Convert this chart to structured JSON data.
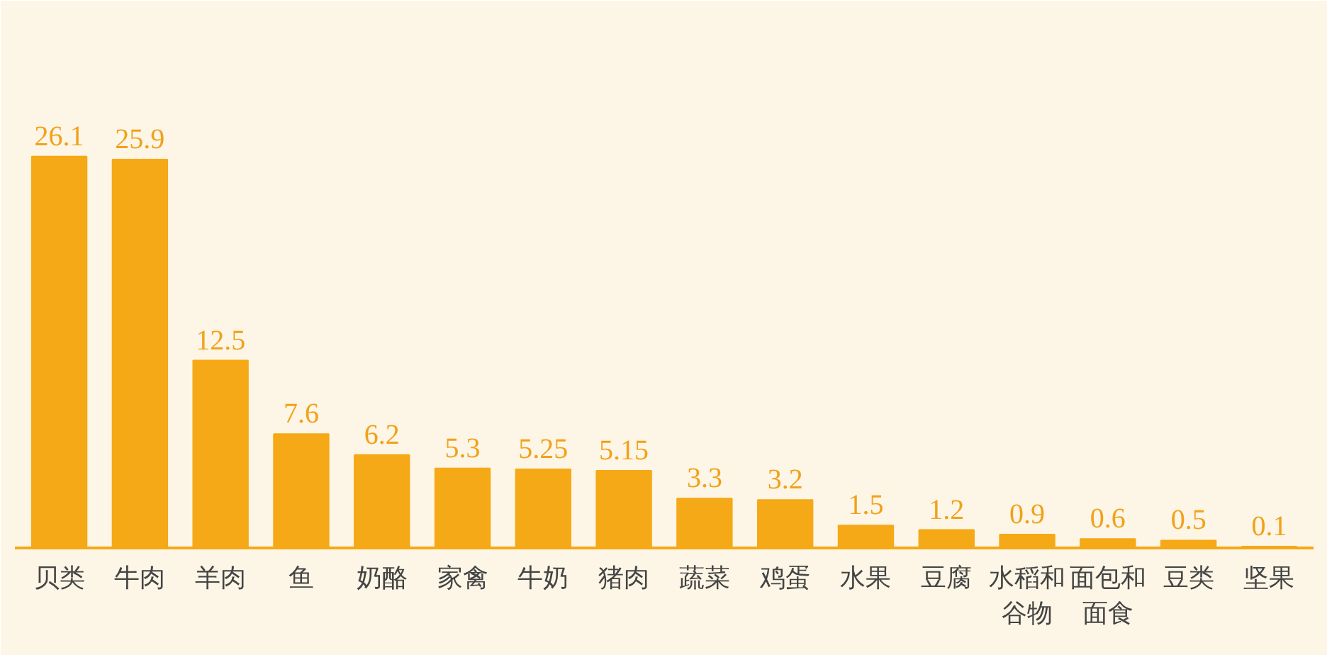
{
  "chart_data": {
    "type": "bar",
    "categories": [
      "贝类",
      "牛肉",
      "羊肉",
      "鱼",
      "奶酪",
      "家禽",
      "牛奶",
      "猪肉",
      "蔬菜",
      "鸡蛋",
      "水果",
      "豆腐",
      "水稻和谷物",
      "面包和面食",
      "豆类",
      "坚果"
    ],
    "values": [
      26.1,
      25.9,
      12.5,
      7.6,
      6.2,
      5.3,
      5.25,
      5.15,
      3.3,
      3.2,
      1.5,
      1.2,
      0.9,
      0.6,
      0.5,
      0.1
    ],
    "color": "#f5a916",
    "data_labels": true
  }
}
